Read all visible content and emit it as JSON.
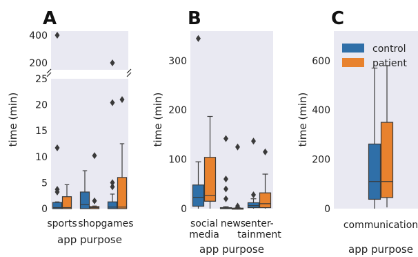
{
  "colors": {
    "control": "#2f6fa8",
    "patient": "#e8822e",
    "panel_bg": "#e9e9f2",
    "whisker": "#3a3a3a"
  },
  "chart_data": [
    {
      "panel": "A",
      "type": "boxplot",
      "xlabel": "app purpose",
      "ylabel": "time (min)",
      "broken_y_axis": true,
      "ylim_lower": [
        0,
        25
      ],
      "ylim_upper": [
        150,
        430
      ],
      "yticks_lower": [
        "0",
        "5",
        "10",
        "15",
        "20",
        "25"
      ],
      "yticks_upper": [
        "200",
        "400"
      ],
      "categories": [
        "sports",
        "shop",
        "games"
      ],
      "series": [
        {
          "name": "control",
          "boxes": [
            {
              "q1": 0,
              "median": 0.2,
              "q3": 1.2,
              "whisker_low": 0,
              "whisker_high": 1.3,
              "outliers": [
                3.2,
                3.7,
                11.7,
                400
              ]
            },
            {
              "q1": 0,
              "median": 0.8,
              "q3": 3.2,
              "whisker_low": 0,
              "whisker_high": 7.3,
              "outliers": []
            },
            {
              "q1": 0,
              "median": 0.3,
              "q3": 1.3,
              "whisker_low": 0,
              "whisker_high": 2.8,
              "outliers": [
                4.2,
                5.0,
                20.4,
                200
              ]
            }
          ]
        },
        {
          "name": "patient",
          "boxes": [
            {
              "q1": 0,
              "median": 0.2,
              "q3": 2.3,
              "whisker_low": 0,
              "whisker_high": 4.6,
              "outliers": []
            },
            {
              "q1": 0,
              "median": 0.2,
              "q3": 0.4,
              "whisker_low": 0,
              "whisker_high": 0.5,
              "outliers": [
                1.5,
                10.2
              ]
            },
            {
              "q1": 0,
              "median": 0.3,
              "q3": 6.0,
              "whisker_low": 0,
              "whisker_high": 12.5,
              "outliers": [
                21.0
              ]
            }
          ]
        }
      ]
    },
    {
      "panel": "B",
      "type": "boxplot",
      "xlabel": "app purpose",
      "ylabel": "time (min)",
      "ylim": [
        0,
        360
      ],
      "yticks": [
        "0",
        "100",
        "200",
        "300"
      ],
      "categories": [
        "social media",
        "news",
        "enter-tainment"
      ],
      "category_lines": [
        [
          "social",
          "media"
        ],
        [
          "news"
        ],
        [
          "enter-",
          "tainment"
        ]
      ],
      "series": [
        {
          "name": "control",
          "boxes": [
            {
              "q1": 5,
              "median": 23,
              "q3": 48,
              "whisker_low": 0,
              "whisker_high": 95,
              "outliers": [
                345
              ]
            },
            {
              "q1": 0,
              "median": 0.5,
              "q3": 2,
              "whisker_low": 0,
              "whisker_high": 4,
              "outliers": [
                20,
                40,
                60,
                142
              ]
            },
            {
              "q1": 2,
              "median": 6,
              "q3": 12,
              "whisker_low": 0,
              "whisker_high": 20,
              "outliers": [
                28,
                137
              ]
            }
          ]
        },
        {
          "name": "patient",
          "boxes": [
            {
              "q1": 15,
              "median": 27,
              "q3": 104,
              "whisker_low": 0,
              "whisker_high": 187,
              "outliers": []
            },
            {
              "q1": 0,
              "median": 0.5,
              "q3": 1,
              "whisker_low": 0,
              "whisker_high": 2,
              "outliers": [
                5,
                125
              ]
            },
            {
              "q1": 2,
              "median": 10,
              "q3": 32,
              "whisker_low": 0,
              "whisker_high": 70,
              "outliers": [
                115
              ]
            }
          ]
        }
      ]
    },
    {
      "panel": "C",
      "type": "boxplot",
      "xlabel": "app purpose",
      "ylabel": "time (min)",
      "ylim": [
        0,
        720
      ],
      "yticks": [
        "0",
        "200",
        "400",
        "600"
      ],
      "categories": [
        "communication"
      ],
      "legend": {
        "placement": "top-right",
        "entries": [
          "control",
          "patient"
        ]
      },
      "series": [
        {
          "name": "control",
          "boxes": [
            {
              "q1": 38,
              "median": 110,
              "q3": 262,
              "whisker_low": 0,
              "whisker_high": 570,
              "outliers": []
            }
          ]
        },
        {
          "name": "patient",
          "boxes": [
            {
              "q1": 45,
              "median": 110,
              "q3": 350,
              "whisker_low": 5,
              "whisker_high": 580,
              "outliers": []
            }
          ]
        }
      ]
    }
  ]
}
